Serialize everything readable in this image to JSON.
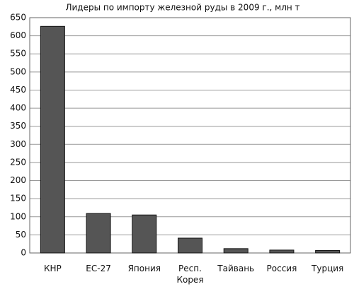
{
  "chart_data": {
    "type": "bar",
    "title": "Лидеры по импорту железной руды в 2009 г., млн т",
    "categories": [
      "КНР",
      "ЕС-27",
      "Япония",
      "Респ. Корея",
      "Тайвань",
      "Россия",
      "Турция"
    ],
    "values": [
      626,
      109,
      105,
      41,
      12,
      8,
      7
    ],
    "color": "#555555",
    "ylim": [
      0,
      650
    ],
    "yticks": [
      0,
      50,
      100,
      150,
      200,
      250,
      300,
      350,
      400,
      450,
      500,
      550,
      600,
      650
    ],
    "grid": true
  }
}
